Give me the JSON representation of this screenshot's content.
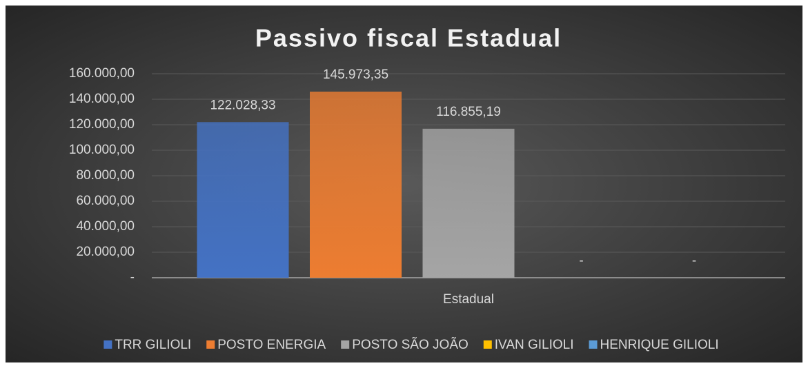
{
  "chart_data": {
    "type": "bar",
    "title": "Passivo fiscal Estadual",
    "categories": [
      "Estadual"
    ],
    "series": [
      {
        "name": "TRR GILIOLI",
        "color": "#4472c4",
        "values": [
          122028.33
        ],
        "value_labels": [
          "122.028,33"
        ]
      },
      {
        "name": "POSTO ENERGIA",
        "color": "#ed7d31",
        "values": [
          145973.35
        ],
        "value_labels": [
          "145.973,35"
        ]
      },
      {
        "name": "POSTO SÃO JOÃO",
        "color": "#a5a5a5",
        "values": [
          116855.19
        ],
        "value_labels": [
          "116.855,19"
        ]
      },
      {
        "name": "IVAN GILIOLI",
        "color": "#ffc000",
        "values": [
          0
        ],
        "value_labels": [
          "-"
        ]
      },
      {
        "name": "HENRIQUE GILIOLI",
        "color": "#5b9bd5",
        "values": [
          0
        ],
        "value_labels": [
          "-"
        ]
      }
    ],
    "ylim": [
      0,
      160000
    ],
    "yticks": [
      {
        "value": 0,
        "label": "-"
      },
      {
        "value": 20000,
        "label": "20.000,00"
      },
      {
        "value": 40000,
        "label": "40.000,00"
      },
      {
        "value": 60000,
        "label": "60.000,00"
      },
      {
        "value": 80000,
        "label": "80.000,00"
      },
      {
        "value": 100000,
        "label": "100.000,00"
      },
      {
        "value": 120000,
        "label": "120.000,00"
      },
      {
        "value": 140000,
        "label": "140.000,00"
      },
      {
        "value": 160000,
        "label": "160.000,00"
      }
    ],
    "grid": true,
    "legend": "bottom"
  }
}
